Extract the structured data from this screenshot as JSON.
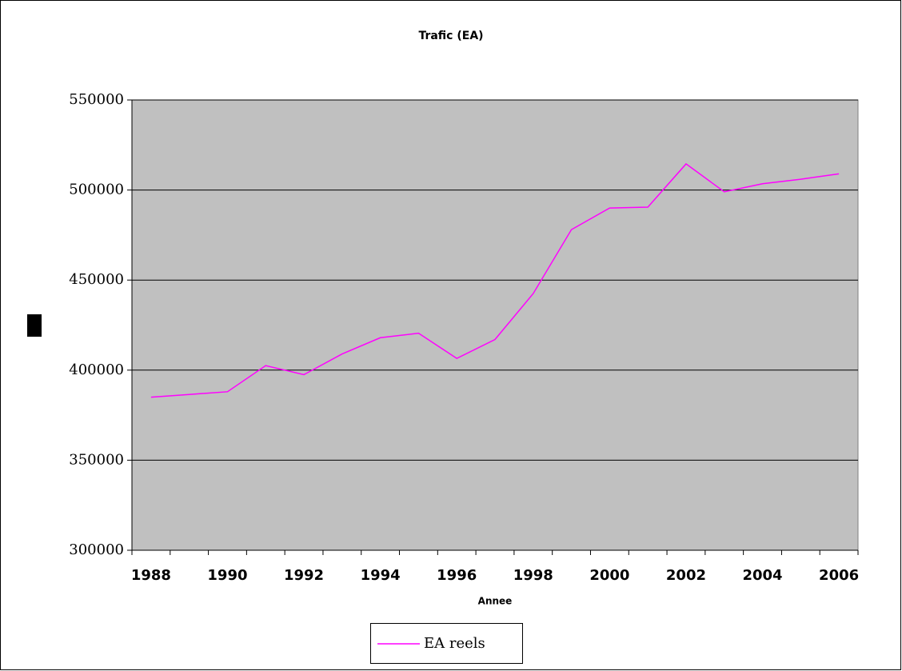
{
  "chart_data": {
    "type": "line",
    "title": "Trafic (EA)",
    "x_label": "Annee",
    "categories": [
      "1988",
      null,
      "1990",
      null,
      "1992",
      null,
      "1994",
      null,
      "1996",
      null,
      "1998",
      null,
      "2000",
      null,
      "2002",
      null,
      "2004",
      null,
      "2006"
    ],
    "series": [
      {
        "name": "EA reels",
        "color": "#ff00ff",
        "values": [
          385000,
          386500,
          388000,
          402500,
          397500,
          409000,
          418000,
          420500,
          406500,
          417000,
          442500,
          478000,
          490000,
          490500,
          514500,
          499000,
          503500,
          506000,
          509000
        ]
      }
    ],
    "ylim": [
      300000,
      550000
    ],
    "yticks": [
      300000,
      350000,
      400000,
      450000,
      500000,
      550000
    ],
    "grid": true,
    "legend": "bottom"
  }
}
